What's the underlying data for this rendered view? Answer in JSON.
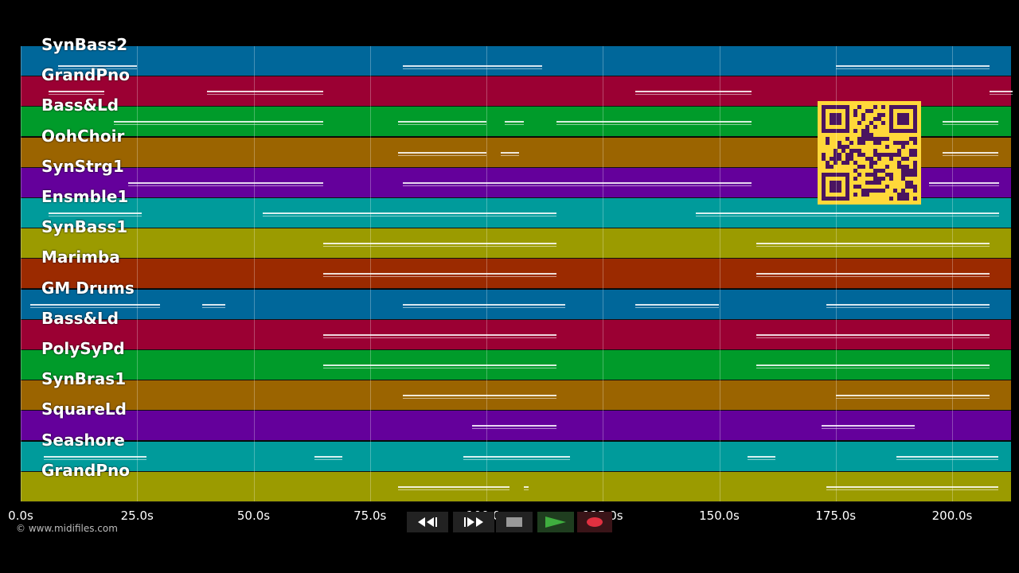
{
  "tracks": [
    {
      "label": "SynBass2",
      "color": "#00679a"
    },
    {
      "label": "GrandPno",
      "color": "#9b0033"
    },
    {
      "label": "Bass&Ld",
      "color": "#009b2a"
    },
    {
      "label": "OohChoir",
      "color": "#9b6400"
    },
    {
      "label": "SynStrg1",
      "color": "#64009b"
    },
    {
      "label": "Ensmble1",
      "color": "#009b9b"
    },
    {
      "label": "SynBass1",
      "color": "#9b9b00"
    },
    {
      "label": "Marimba",
      "color": "#9b2a00"
    },
    {
      "label": "GM Drums",
      "color": "#00679a"
    },
    {
      "label": "Bass&Ld",
      "color": "#9b0033"
    },
    {
      "label": "PolySyPd",
      "color": "#009b2a"
    },
    {
      "label": "SynBras1",
      "color": "#9b6400"
    },
    {
      "label": "SquareLd",
      "color": "#64009b"
    },
    {
      "label": "Seashore",
      "color": "#009b9b"
    },
    {
      "label": "GrandPno",
      "color": "#9b9b00"
    }
  ],
  "time_axis": {
    "ticks": [
      {
        "value": 0,
        "label": "0.0s"
      },
      {
        "value": 25,
        "label": "25.0s"
      },
      {
        "value": 50,
        "label": "50.0s"
      },
      {
        "value": 75,
        "label": "75.0s"
      },
      {
        "value": 100,
        "label": "100.0s"
      },
      {
        "value": 125,
        "label": "125.0s"
      },
      {
        "value": 150,
        "label": "150.0s"
      },
      {
        "value": 175,
        "label": "175.0s"
      },
      {
        "value": 200,
        "label": "200.0s"
      }
    ],
    "max_seconds": 213
  },
  "copyright": "© www.midifiles.com",
  "transport": {
    "rewind_icon": "rewind-icon",
    "fast_forward_icon": "fast-forward-icon",
    "stop_icon": "stop-icon",
    "play_icon": "play-icon",
    "record_icon": "record-icon",
    "play_color": "#3fae3f",
    "record_color": "#e03040"
  },
  "qr_code": {
    "color": "#ffd83a",
    "module_color": "#4a1460"
  }
}
